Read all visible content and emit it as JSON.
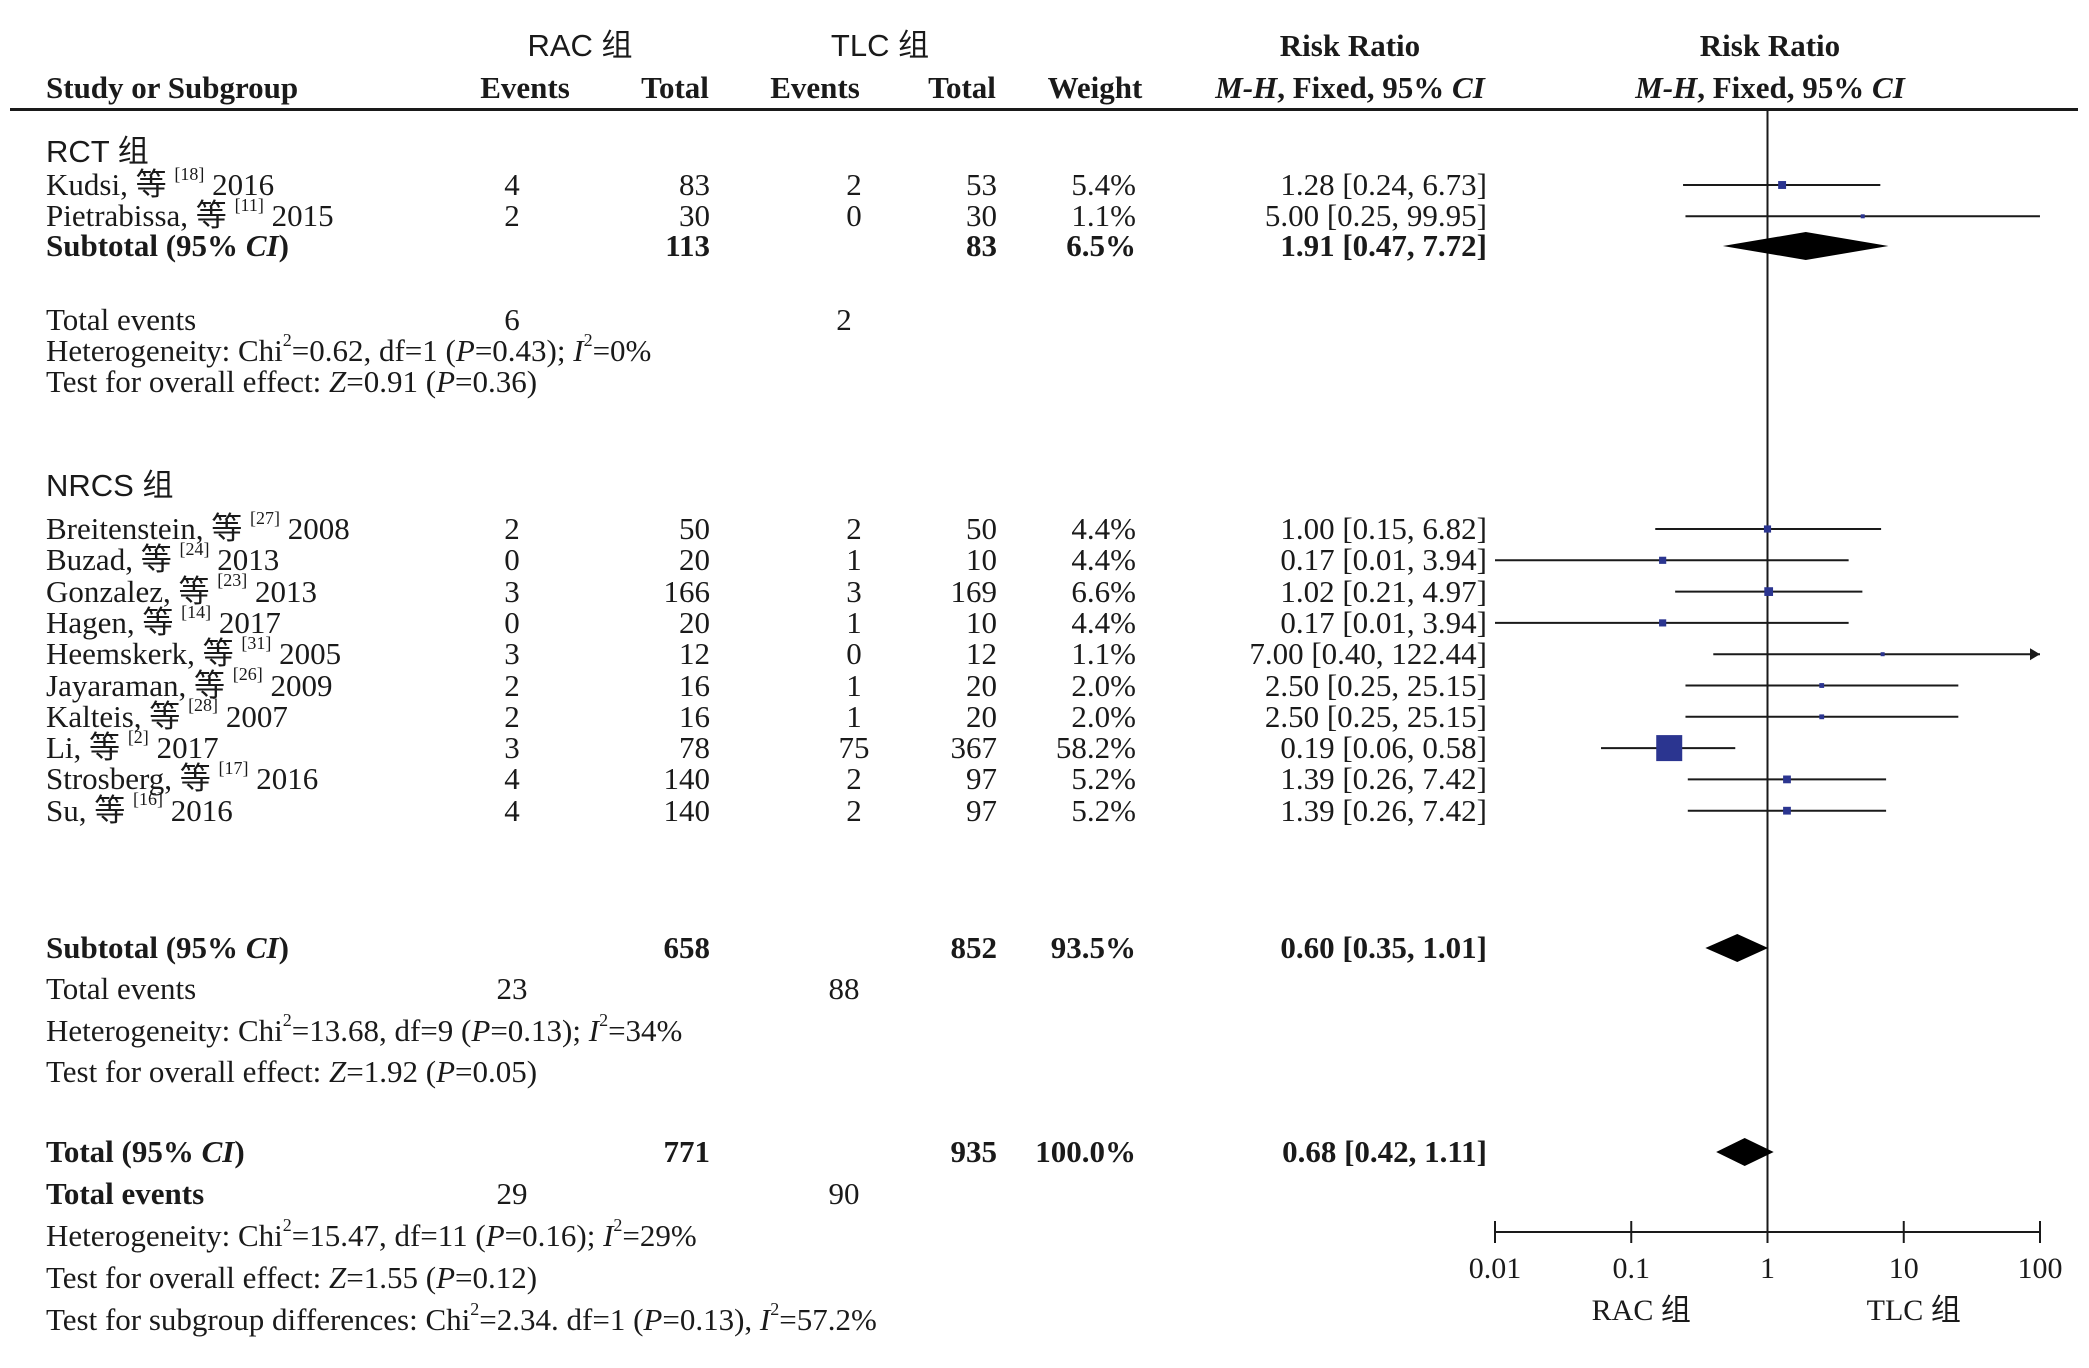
{
  "header": {
    "group_a": "RAC 组",
    "group_b": "TLC 组",
    "study_col": "Study or Subgroup",
    "events": "Events",
    "total": "Total",
    "weight": "Weight",
    "rr_title": "Risk Ratio",
    "rr_method_a": "M-H",
    "rr_method_b": ", Fixed, 95% ",
    "rr_method_c": "CI"
  },
  "subgroups": [
    {
      "title": "RCT 组",
      "studies": [
        {
          "author": "Kudsi, 等",
          "ref": "[18]",
          "year": "2016",
          "e1": "4",
          "n1": "83",
          "e2": "2",
          "n2": "53",
          "weight": "5.4%",
          "ci_text": "1.28 [0.24, 6.73]"
        },
        {
          "author": "Pietrabissa, 等",
          "ref": "[11]",
          "year": "2015",
          "e1": "2",
          "n1": "30",
          "e2": "0",
          "n2": "30",
          "weight": "1.1%",
          "ci_text": "5.00 [0.25, 99.95]"
        }
      ],
      "subtotal": {
        "label": "Subtotal (95% CI)",
        "n1": "113",
        "n2": "83",
        "weight": "6.5%",
        "ci_text": "1.91 [0.47, 7.72]"
      },
      "total_events": {
        "label": "Total events",
        "e1": "6",
        "e2": "2"
      },
      "heterogeneity": {
        "prefix": "Heterogeneity: Chi",
        "chi": "=0.62, df=1 (",
        "p": "=0.43); ",
        "i2": "=0%"
      },
      "overall": {
        "prefix": "Test for overall effect: ",
        "z": "=0.91 (",
        "p": "=0.36)"
      }
    },
    {
      "title": "NRCS 组",
      "studies": [
        {
          "author": "Breitenstein, 等",
          "ref": "[27]",
          "year": "2008",
          "e1": "2",
          "n1": "50",
          "e2": "2",
          "n2": "50",
          "weight": "4.4%",
          "ci_text": "1.00 [0.15, 6.82]"
        },
        {
          "author": "Buzad, 等",
          "ref": "[24]",
          "year": "2013",
          "e1": "0",
          "n1": "20",
          "e2": "1",
          "n2": "10",
          "weight": "4.4%",
          "ci_text": "0.17 [0.01, 3.94]"
        },
        {
          "author": "Gonzalez, 等",
          "ref": "[23]",
          "year": "2013",
          "e1": "3",
          "n1": "166",
          "e2": "3",
          "n2": "169",
          "weight": "6.6%",
          "ci_text": "1.02 [0.21, 4.97]"
        },
        {
          "author": "Hagen, 等",
          "ref": "[14]",
          "year": "2017",
          "e1": "0",
          "n1": "20",
          "e2": "1",
          "n2": "10",
          "weight": "4.4%",
          "ci_text": "0.17 [0.01, 3.94]"
        },
        {
          "author": "Heemskerk, 等",
          "ref": "[31]",
          "year": "2005",
          "e1": "3",
          "n1": "12",
          "e2": "0",
          "n2": "12",
          "weight": "1.1%",
          "ci_text": "7.00 [0.40, 122.44]"
        },
        {
          "author": "Jayaraman, 等",
          "ref": "[26]",
          "year": "2009",
          "e1": "2",
          "n1": "16",
          "e2": "1",
          "n2": "20",
          "weight": "2.0%",
          "ci_text": "2.50 [0.25, 25.15]"
        },
        {
          "author": "Kalteis, 等",
          "ref": "[28]",
          "year": "2007",
          "e1": "2",
          "n1": "16",
          "e2": "1",
          "n2": "20",
          "weight": "2.0%",
          "ci_text": "2.50 [0.25, 25.15]"
        },
        {
          "author": "Li, 等",
          "ref": "[2]",
          "year": "2017",
          "e1": "3",
          "n1": "78",
          "e2": "75",
          "n2": "367",
          "weight": "58.2%",
          "ci_text": "0.19 [0.06, 0.58]"
        },
        {
          "author": "Strosberg, 等",
          "ref": "[17]",
          "year": "2016",
          "e1": "4",
          "n1": "140",
          "e2": "2",
          "n2": "97",
          "weight": "5.2%",
          "ci_text": "1.39 [0.26, 7.42]"
        },
        {
          "author": "Su, 等",
          "ref": "[16]",
          "year": "2016",
          "e1": "4",
          "n1": "140",
          "e2": "2",
          "n2": "97",
          "weight": "5.2%",
          "ci_text": "1.39 [0.26, 7.42]"
        }
      ],
      "subtotal": {
        "label": "Subtotal (95% CI)",
        "n1": "658",
        "n2": "852",
        "weight": "93.5%",
        "ci_text": "0.60 [0.35, 1.01]"
      },
      "total_events": {
        "label": "Total events",
        "e1": "23",
        "e2": "88"
      },
      "heterogeneity": {
        "prefix": "Heterogeneity: Chi",
        "chi": "=13.68, df=9 (",
        "p": "=0.13); ",
        "i2": "=34%"
      },
      "overall": {
        "prefix": "Test for overall effect: ",
        "z": "=1.92 (",
        "p": "=0.05)"
      }
    }
  ],
  "total": {
    "label": "Total (95% CI)",
    "n1": "771",
    "n2": "935",
    "weight": "100.0%",
    "ci_text": "0.68 [0.42, 1.11]"
  },
  "total_events": {
    "label": "Total events",
    "e1": "29",
    "e2": "90"
  },
  "heterogeneity": {
    "prefix": "Heterogeneity: Chi",
    "chi": "=15.47, df=11 (",
    "p": "=0.16); ",
    "i2": "=29%"
  },
  "overall": {
    "prefix": "Test for overall effect: ",
    "z": "=1.55 (",
    "p": "=0.12)"
  },
  "subgroup_diff": {
    "prefix": "Test for subgroup differences: Chi",
    "chi": "=2.34. df=1 (",
    "p": "=0.13), ",
    "i2": "=57.2%"
  },
  "axis": {
    "ticks": [
      "0.01",
      "0.1",
      "1",
      "10",
      "100"
    ],
    "favours_left": "RAC 组",
    "favours_right": "TLC 组"
  },
  "colors": {
    "marker": "#2b3590",
    "diamond": "#000000",
    "line": "#1a1a1a"
  },
  "chart_data": {
    "type": "forest",
    "scale": "log",
    "xlim": [
      0.01,
      100
    ],
    "reference_line": 1,
    "xlabel_left": "RAC 组",
    "xlabel_right": "TLC 组",
    "studies": [
      {
        "rr": 1.28,
        "lo": 0.24,
        "hi": 6.73,
        "weight": 5.4
      },
      {
        "rr": 5.0,
        "lo": 0.25,
        "hi": 99.95,
        "weight": 1.1
      },
      {
        "rr": 1.0,
        "lo": 0.15,
        "hi": 6.82,
        "weight": 4.4
      },
      {
        "rr": 0.17,
        "lo": 0.01,
        "hi": 3.94,
        "weight": 4.4
      },
      {
        "rr": 1.02,
        "lo": 0.21,
        "hi": 4.97,
        "weight": 6.6
      },
      {
        "rr": 0.17,
        "lo": 0.01,
        "hi": 3.94,
        "weight": 4.4
      },
      {
        "rr": 7.0,
        "lo": 0.4,
        "hi": 122.44,
        "weight": 1.1
      },
      {
        "rr": 2.5,
        "lo": 0.25,
        "hi": 25.15,
        "weight": 2.0
      },
      {
        "rr": 2.5,
        "lo": 0.25,
        "hi": 25.15,
        "weight": 2.0
      },
      {
        "rr": 0.19,
        "lo": 0.06,
        "hi": 0.58,
        "weight": 58.2
      },
      {
        "rr": 1.39,
        "lo": 0.26,
        "hi": 7.42,
        "weight": 5.2
      },
      {
        "rr": 1.39,
        "lo": 0.26,
        "hi": 7.42,
        "weight": 5.2
      }
    ],
    "diamonds": [
      {
        "rr": 1.91,
        "lo": 0.47,
        "hi": 7.72
      },
      {
        "rr": 0.6,
        "lo": 0.35,
        "hi": 1.01
      },
      {
        "rr": 0.68,
        "lo": 0.42,
        "hi": 1.11
      }
    ]
  }
}
